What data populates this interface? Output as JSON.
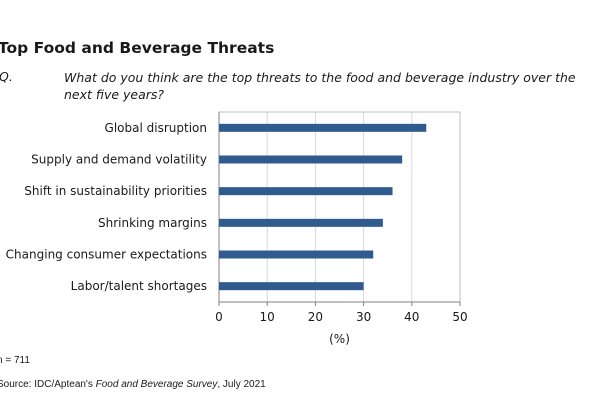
{
  "header": {
    "title": "Top Food and Beverage Threats",
    "question_label": "Q.",
    "question_text": "What do you think are the top threats to the food and beverage industry over the next five years?"
  },
  "footer": {
    "n_note": "n = 711",
    "source_prefix": "Source: IDC/Aptean's ",
    "source_title": "Food and Beverage Survey",
    "source_suffix": ", July 2021"
  },
  "chart_data": {
    "type": "bar",
    "orientation": "horizontal",
    "categories": [
      "Global disruption",
      "Supply and demand volatility",
      "Shift in sustainability priorities",
      "Shrinking margins",
      "Changing consumer expectations",
      "Labor/talent shortages"
    ],
    "values": [
      43,
      38,
      36,
      34,
      32,
      30
    ],
    "xlabel": "(%)",
    "ylabel": "",
    "xlim": [
      0,
      50
    ],
    "xticks": [
      0,
      10,
      20,
      30,
      40,
      50
    ],
    "bar_color": "#2f5b8e",
    "grid": true
  }
}
